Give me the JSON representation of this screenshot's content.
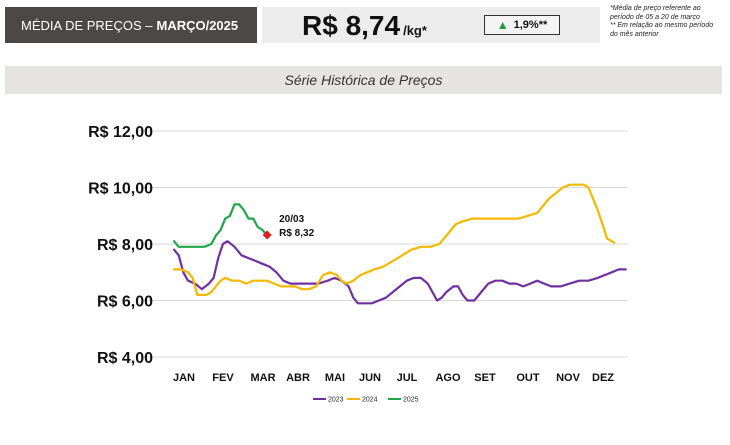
{
  "header": {
    "title_prefix": "MÉDIA DE PREÇOS –",
    "title_period": "MARÇO/2025",
    "price": "R$ 8,74",
    "price_unit": "/kg*",
    "variation": "1,9%**",
    "variation_color": "#1e9b3a",
    "notes": [
      "*Média de preço referente ao",
      "período de 05 a 20 de março",
      "** Em relação ao mesmo período",
      "do mês anterior"
    ]
  },
  "section_title": "Série Histórica de Preços",
  "chart_data": {
    "type": "line",
    "title": "Série Histórica de Preços",
    "x_months": [
      "JAN",
      "FEV",
      "MAR",
      "ABR",
      "MAI",
      "JUN",
      "JUL",
      "AGO",
      "SET",
      "OUT",
      "NOV",
      "DEZ"
    ],
    "ylim": [
      4,
      12
    ],
    "yticks": [
      4,
      6,
      8,
      10,
      12
    ],
    "ytick_labels": [
      "R$ 4,00",
      "R$ 6,00",
      "R$ 8,00",
      "R$ 10,00",
      "R$ 12,00"
    ],
    "legend_position": "bottom",
    "grid": true,
    "series": [
      {
        "name": "2023",
        "color": "#7030a0",
        "points": [
          [
            0,
            7.8
          ],
          [
            0.1,
            7.6
          ],
          [
            0.2,
            7.0
          ],
          [
            0.3,
            6.7
          ],
          [
            0.45,
            6.6
          ],
          [
            0.6,
            6.4
          ],
          [
            0.75,
            6.6
          ],
          [
            0.85,
            6.8
          ],
          [
            0.95,
            7.5
          ],
          [
            1.05,
            8.0
          ],
          [
            1.15,
            8.1
          ],
          [
            1.3,
            7.9
          ],
          [
            1.45,
            7.6
          ],
          [
            1.6,
            7.5
          ],
          [
            1.75,
            7.4
          ],
          [
            1.9,
            7.3
          ],
          [
            2.05,
            7.2
          ],
          [
            2.2,
            7.0
          ],
          [
            2.35,
            6.7
          ],
          [
            2.5,
            6.6
          ],
          [
            2.7,
            6.6
          ],
          [
            2.9,
            6.6
          ],
          [
            3.1,
            6.6
          ],
          [
            3.3,
            6.7
          ],
          [
            3.45,
            6.8
          ],
          [
            3.6,
            6.7
          ],
          [
            3.75,
            6.5
          ],
          [
            3.85,
            6.1
          ],
          [
            3.95,
            5.9
          ],
          [
            4.1,
            5.9
          ],
          [
            4.25,
            5.9
          ],
          [
            4.4,
            6.0
          ],
          [
            4.55,
            6.1
          ],
          [
            4.7,
            6.3
          ],
          [
            4.85,
            6.5
          ],
          [
            5.0,
            6.7
          ],
          [
            5.15,
            6.8
          ],
          [
            5.3,
            6.8
          ],
          [
            5.45,
            6.6
          ],
          [
            5.55,
            6.3
          ],
          [
            5.65,
            6.0
          ],
          [
            5.75,
            6.1
          ],
          [
            5.85,
            6.3
          ],
          [
            6.0,
            6.5
          ],
          [
            6.1,
            6.5
          ],
          [
            6.2,
            6.2
          ],
          [
            6.3,
            6.0
          ],
          [
            6.45,
            6.0
          ],
          [
            6.6,
            6.3
          ],
          [
            6.75,
            6.6
          ],
          [
            6.9,
            6.7
          ],
          [
            7.05,
            6.7
          ],
          [
            7.2,
            6.6
          ],
          [
            7.35,
            6.6
          ],
          [
            7.5,
            6.5
          ],
          [
            7.65,
            6.6
          ],
          [
            7.8,
            6.7
          ],
          [
            7.95,
            6.6
          ],
          [
            8.1,
            6.5
          ],
          [
            8.3,
            6.5
          ],
          [
            8.5,
            6.6
          ],
          [
            8.7,
            6.7
          ],
          [
            8.9,
            6.7
          ],
          [
            9.1,
            6.8
          ],
          [
            9.25,
            6.9
          ],
          [
            9.4,
            7.0
          ],
          [
            9.55,
            7.1
          ],
          [
            9.7,
            7.1
          ]
        ]
      },
      {
        "name": "2024",
        "color": "#f5b800",
        "points": [
          [
            0,
            7.1
          ],
          [
            0.15,
            7.1
          ],
          [
            0.3,
            7.0
          ],
          [
            0.4,
            6.8
          ],
          [
            0.5,
            6.2
          ],
          [
            0.6,
            6.2
          ],
          [
            0.7,
            6.2
          ],
          [
            0.8,
            6.3
          ],
          [
            0.9,
            6.5
          ],
          [
            1.0,
            6.7
          ],
          [
            1.1,
            6.8
          ],
          [
            1.25,
            6.7
          ],
          [
            1.4,
            6.7
          ],
          [
            1.55,
            6.6
          ],
          [
            1.7,
            6.7
          ],
          [
            1.85,
            6.7
          ],
          [
            2.0,
            6.7
          ],
          [
            2.15,
            6.6
          ],
          [
            2.3,
            6.5
          ],
          [
            2.45,
            6.5
          ],
          [
            2.6,
            6.5
          ],
          [
            2.75,
            6.4
          ],
          [
            2.9,
            6.4
          ],
          [
            3.05,
            6.5
          ],
          [
            3.2,
            6.9
          ],
          [
            3.35,
            7.0
          ],
          [
            3.5,
            6.9
          ],
          [
            3.6,
            6.7
          ],
          [
            3.7,
            6.6
          ],
          [
            3.85,
            6.7
          ],
          [
            4.0,
            6.9
          ],
          [
            4.15,
            7.0
          ],
          [
            4.3,
            7.1
          ],
          [
            4.5,
            7.2
          ],
          [
            4.7,
            7.4
          ],
          [
            4.9,
            7.6
          ],
          [
            5.1,
            7.8
          ],
          [
            5.3,
            7.9
          ],
          [
            5.5,
            7.9
          ],
          [
            5.7,
            8.0
          ],
          [
            5.85,
            8.3
          ],
          [
            5.95,
            8.5
          ],
          [
            6.05,
            8.7
          ],
          [
            6.2,
            8.8
          ],
          [
            6.4,
            8.9
          ],
          [
            6.6,
            8.9
          ],
          [
            6.8,
            8.9
          ],
          [
            7.0,
            8.9
          ],
          [
            7.2,
            8.9
          ],
          [
            7.4,
            8.9
          ],
          [
            7.6,
            9.0
          ],
          [
            7.8,
            9.1
          ],
          [
            7.95,
            9.4
          ],
          [
            8.05,
            9.6
          ],
          [
            8.2,
            9.8
          ],
          [
            8.35,
            10.0
          ],
          [
            8.5,
            10.1
          ],
          [
            8.65,
            10.1
          ],
          [
            8.8,
            10.1
          ],
          [
            8.9,
            10.0
          ],
          [
            9.0,
            9.6
          ],
          [
            9.1,
            9.2
          ],
          [
            9.2,
            8.7
          ],
          [
            9.3,
            8.2
          ],
          [
            9.45,
            8.05
          ]
        ]
      },
      {
        "name": "2025",
        "color": "#1ea84a",
        "points": [
          [
            0,
            8.1
          ],
          [
            0.1,
            7.9
          ],
          [
            0.25,
            7.9
          ],
          [
            0.4,
            7.9
          ],
          [
            0.55,
            7.9
          ],
          [
            0.65,
            7.9
          ],
          [
            0.8,
            8.0
          ],
          [
            0.9,
            8.3
          ],
          [
            1.0,
            8.5
          ],
          [
            1.1,
            8.9
          ],
          [
            1.2,
            9.0
          ],
          [
            1.3,
            9.4
          ],
          [
            1.4,
            9.4
          ],
          [
            1.5,
            9.2
          ],
          [
            1.6,
            8.9
          ],
          [
            1.7,
            8.9
          ],
          [
            1.8,
            8.6
          ],
          [
            1.9,
            8.5
          ],
          [
            2.0,
            8.3
          ]
        ]
      }
    ],
    "marker": {
      "x": 2.0,
      "y": 8.32,
      "color": "#e31e24"
    },
    "annotation": {
      "lines": [
        "20/03",
        "R$ 8,32"
      ]
    }
  }
}
